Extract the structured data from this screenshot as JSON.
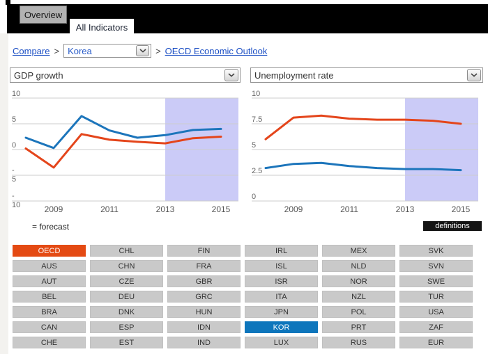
{
  "header": {
    "tabs": [
      {
        "label": "Overview",
        "active": false
      },
      {
        "label": "All Indicators",
        "active": true
      }
    ]
  },
  "breadcrumb": {
    "compare_label": "Compare",
    "separator1": ">",
    "country_select_value": "Korea",
    "separator2": ">",
    "outlook_link_label": "OECD Economic Outlook"
  },
  "legend": {
    "forecast_label": "= forecast"
  },
  "definitions": {
    "label": "definitions"
  },
  "colors": {
    "tab_bar": "#000000",
    "link_blue": "#1c4fc4",
    "line_blue": "#1c75bb",
    "line_red": "#e4451b",
    "forecast_fill": "#cbcbf7",
    "grid_line": "#cccccc",
    "selected_oecd": "#e44a13",
    "selected_country": "#0e76bc"
  },
  "chart_data": [
    {
      "type": "line",
      "title": "GDP growth",
      "x": [
        2008,
        2009,
        2010,
        2011,
        2012,
        2013,
        2014,
        2015
      ],
      "xticks": [
        2009,
        2011,
        2013,
        2015
      ],
      "ylim": [
        -10,
        10
      ],
      "yticks": [
        10,
        5,
        0,
        -5,
        -10
      ],
      "grid": true,
      "forecast": {
        "start_x": 2013
      },
      "series": [
        {
          "name": "OECD",
          "color": "#e4451b",
          "values": [
            0.2,
            -3.5,
            3.0,
            1.9,
            1.5,
            1.2,
            2.2,
            2.5
          ]
        },
        {
          "name": "KOR",
          "color": "#1c75bb",
          "values": [
            2.3,
            0.3,
            6.5,
            3.7,
            2.3,
            2.8,
            3.8,
            4.0
          ]
        }
      ]
    },
    {
      "type": "line",
      "title": "Unemployment rate",
      "x": [
        2008,
        2009,
        2010,
        2011,
        2012,
        2013,
        2014,
        2015
      ],
      "xticks": [
        2009,
        2011,
        2013,
        2015
      ],
      "ylim": [
        0,
        10
      ],
      "yticks": [
        10,
        7.5,
        5,
        2.5,
        0
      ],
      "grid": true,
      "forecast": {
        "start_x": 2013
      },
      "series": [
        {
          "name": "OECD",
          "color": "#e4451b",
          "values": [
            6.0,
            8.1,
            8.3,
            8.0,
            7.9,
            7.9,
            7.8,
            7.5
          ]
        },
        {
          "name": "KOR",
          "color": "#1c75bb",
          "values": [
            3.2,
            3.6,
            3.7,
            3.4,
            3.2,
            3.1,
            3.1,
            3.0
          ]
        }
      ]
    }
  ],
  "countries": {
    "grid": [
      [
        "OECD",
        "CHL",
        "FIN",
        "IRL",
        "MEX",
        "SVK"
      ],
      [
        "AUS",
        "CHN",
        "FRA",
        "ISL",
        "NLD",
        "SVN"
      ],
      [
        "AUT",
        "CZE",
        "GBR",
        "ISR",
        "NOR",
        "SWE"
      ],
      [
        "BEL",
        "DEU",
        "GRC",
        "ITA",
        "NZL",
        "TUR"
      ],
      [
        "BRA",
        "DNK",
        "HUN",
        "JPN",
        "POL",
        "USA"
      ],
      [
        "CAN",
        "ESP",
        "IDN",
        "KOR",
        "PRT",
        "ZAF"
      ],
      [
        "CHE",
        "EST",
        "IND",
        "LUX",
        "RUS",
        "EUR"
      ]
    ],
    "selected": [
      {
        "code": "OECD",
        "color": "#e44a13"
      },
      {
        "code": "KOR",
        "color": "#0e76bc"
      }
    ]
  }
}
